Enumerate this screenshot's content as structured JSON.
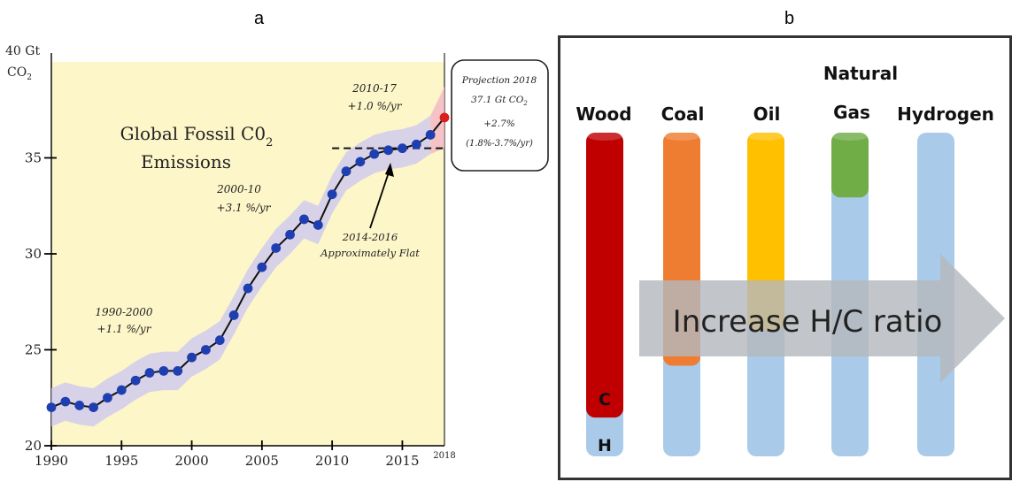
{
  "panel_a_label": "a",
  "panel_b_label": "b",
  "chart_data": [
    {
      "type": "line",
      "title_line1": "Global Fossil C0",
      "title_sub": "2",
      "title_line2": "Emissions",
      "ylabel_line1": "40 Gt",
      "ylabel_line2": "CO",
      "ylabel_sub": "2",
      "ylim": [
        20,
        40
      ],
      "xlim": [
        1990,
        2018
      ],
      "yticks": [
        "20",
        "25",
        "30",
        "35"
      ],
      "ytick_values": [
        20,
        25,
        30,
        35
      ],
      "xticks": [
        "1990",
        "1995",
        "2000",
        "2005",
        "2010",
        "2015"
      ],
      "xtick_values": [
        1990,
        1995,
        2000,
        2005,
        2010,
        2015
      ],
      "x_end_label": "2018",
      "x": [
        1990,
        1991,
        1992,
        1993,
        1994,
        1995,
        1996,
        1997,
        1998,
        1999,
        2000,
        2001,
        2002,
        2003,
        2004,
        2005,
        2006,
        2007,
        2008,
        2009,
        2010,
        2011,
        2012,
        2013,
        2014,
        2015,
        2016,
        2017
      ],
      "values": [
        22.0,
        22.3,
        22.1,
        22.0,
        22.5,
        22.9,
        23.4,
        23.8,
        23.9,
        23.9,
        24.6,
        25.0,
        25.5,
        26.8,
        28.2,
        29.3,
        30.3,
        31.0,
        31.8,
        31.5,
        33.1,
        34.3,
        34.8,
        35.2,
        35.4,
        35.5,
        35.7,
        36.2
      ],
      "band_width": 1.0,
      "projection": {
        "x": 2018,
        "value": 37.1
      },
      "flat_reference": {
        "value": 35.5,
        "x_start": 2010,
        "x_end": 2018
      },
      "annotations": {
        "a1990_line1": "1990-2000",
        "a1990_line2": "+1.1 %/yr",
        "a2000_line1": "2000-10",
        "a2000_line2": "+3.1 %/yr",
        "a2010_line1": "2010-17",
        "a2010_line2": "+1.0 %/yr",
        "flat_line1": "2014-2016",
        "flat_line2": "Approximately Flat",
        "proj_line1": "Projection 2018",
        "proj_line2": "37.1 Gt CO",
        "proj_line2_sub": "2",
        "proj_line3": "+2.7%",
        "proj_line4": "(1.8%-3.7%/yr)"
      },
      "colors": {
        "background": "#fdf6c9",
        "line": "#111111",
        "marker": "#1f3fb0",
        "band": "#c9c6f1",
        "projection": "#d91f1f",
        "projection_band": "#f3b7c4"
      }
    },
    {
      "type": "bar",
      "categories": [
        "Wood",
        "Coal",
        "Oil",
        "Natural\nGas",
        "Hydrogen"
      ],
      "labels": {
        "wood": "Wood",
        "coal": "Coal",
        "oil": "Oil",
        "natural": "Natural",
        "gas": "Gas",
        "hydrogen": "Hydrogen"
      },
      "carbon_fraction": [
        0.88,
        0.72,
        0.61,
        0.2,
        0.0
      ],
      "arrow_text": "Increase H/C ratio",
      "bar_c_label": "C",
      "bar_h_label": "H",
      "colors": {
        "wood": "#c00000",
        "coal": "#ee7d31",
        "oil": "#ffc000",
        "natural_gas": "#70ad47",
        "hydrogen": "#a9cbe9",
        "arrow": "#b4b8bd"
      }
    }
  ]
}
